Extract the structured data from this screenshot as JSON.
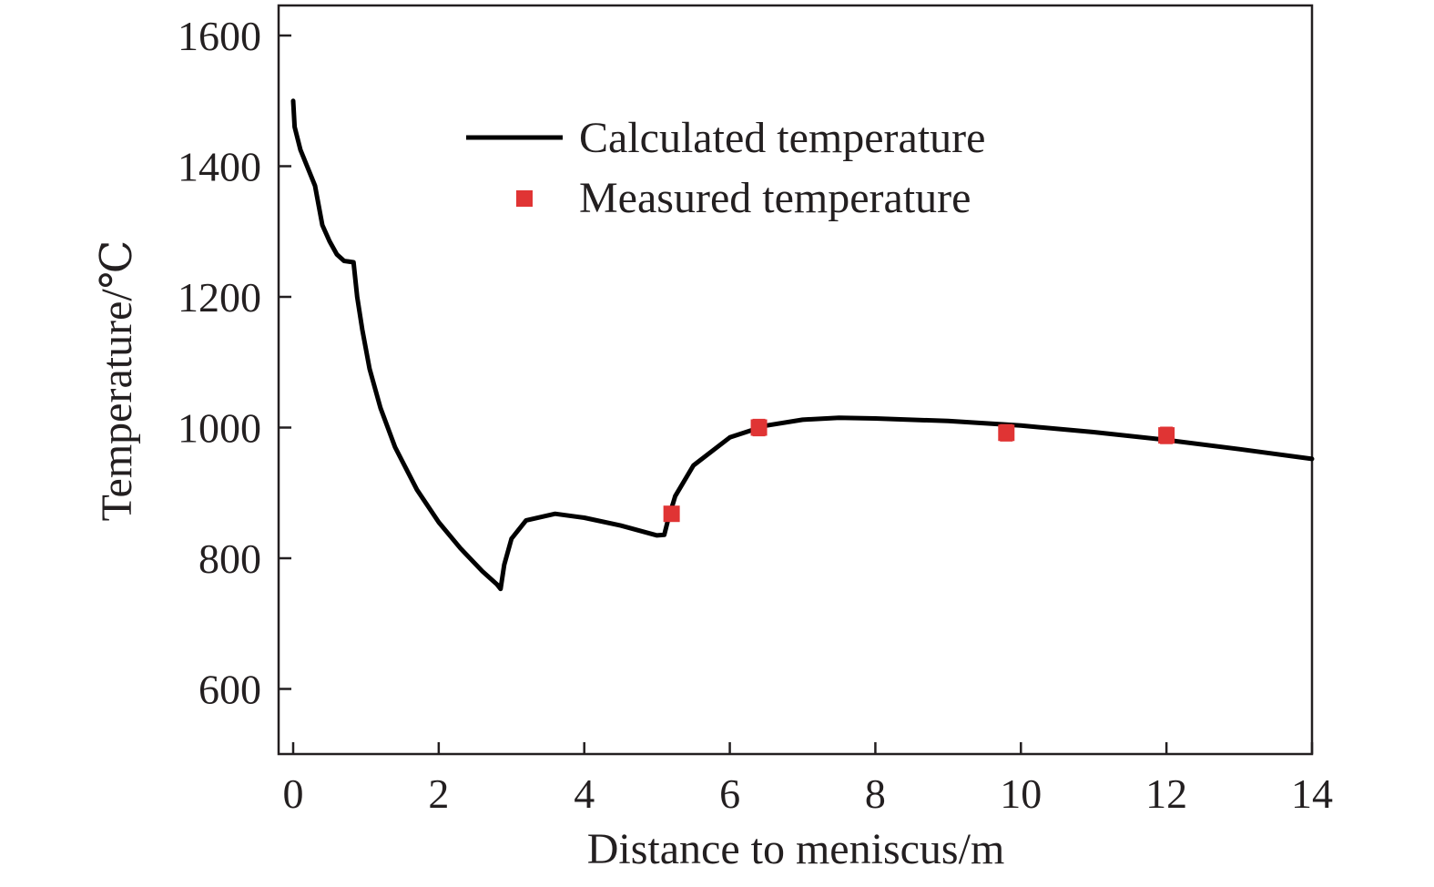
{
  "chart_data": {
    "type": "line",
    "xlabel": "Distance to meniscus/m",
    "ylabel": "Temperature/℃",
    "xlim": [
      -0.2,
      14
    ],
    "ylim": [
      500,
      1650
    ],
    "xticks": [
      0,
      2,
      4,
      6,
      8,
      10,
      12,
      14
    ],
    "yticks": [
      600,
      800,
      1000,
      1200,
      1400,
      1600
    ],
    "grid": false,
    "legend_position": "top-center",
    "series": [
      {
        "name": "Calculated temperature",
        "kind": "line",
        "color": "#000000",
        "points": [
          [
            0.0,
            1500
          ],
          [
            0.02,
            1460
          ],
          [
            0.1,
            1425
          ],
          [
            0.3,
            1370
          ],
          [
            0.4,
            1310
          ],
          [
            0.5,
            1285
          ],
          [
            0.6,
            1265
          ],
          [
            0.7,
            1255
          ],
          [
            0.83,
            1253
          ],
          [
            0.88,
            1200
          ],
          [
            0.95,
            1150
          ],
          [
            1.05,
            1090
          ],
          [
            1.2,
            1030
          ],
          [
            1.4,
            970
          ],
          [
            1.7,
            905
          ],
          [
            2.0,
            855
          ],
          [
            2.3,
            815
          ],
          [
            2.6,
            780
          ],
          [
            2.8,
            760
          ],
          [
            2.85,
            753
          ],
          [
            2.9,
            790
          ],
          [
            3.0,
            830
          ],
          [
            3.2,
            858
          ],
          [
            3.6,
            868
          ],
          [
            4.0,
            862
          ],
          [
            4.5,
            850
          ],
          [
            5.0,
            835
          ],
          [
            5.1,
            836
          ],
          [
            5.15,
            858
          ],
          [
            5.25,
            895
          ],
          [
            5.5,
            942
          ],
          [
            6.0,
            985
          ],
          [
            6.5,
            1003
          ],
          [
            7.0,
            1012
          ],
          [
            7.5,
            1015
          ],
          [
            8.0,
            1014
          ],
          [
            9.0,
            1010
          ],
          [
            10.0,
            1003
          ],
          [
            11.0,
            993
          ],
          [
            12.0,
            981
          ],
          [
            13.0,
            967
          ],
          [
            14.0,
            952
          ]
        ]
      },
      {
        "name": "Measured temperature",
        "kind": "scatter",
        "color": "#e03434",
        "x": [
          5.2,
          6.4,
          9.8,
          12.0
        ],
        "y": [
          868,
          1000,
          992,
          988
        ],
        "error": [
          10,
          12,
          12,
          12
        ]
      }
    ]
  }
}
